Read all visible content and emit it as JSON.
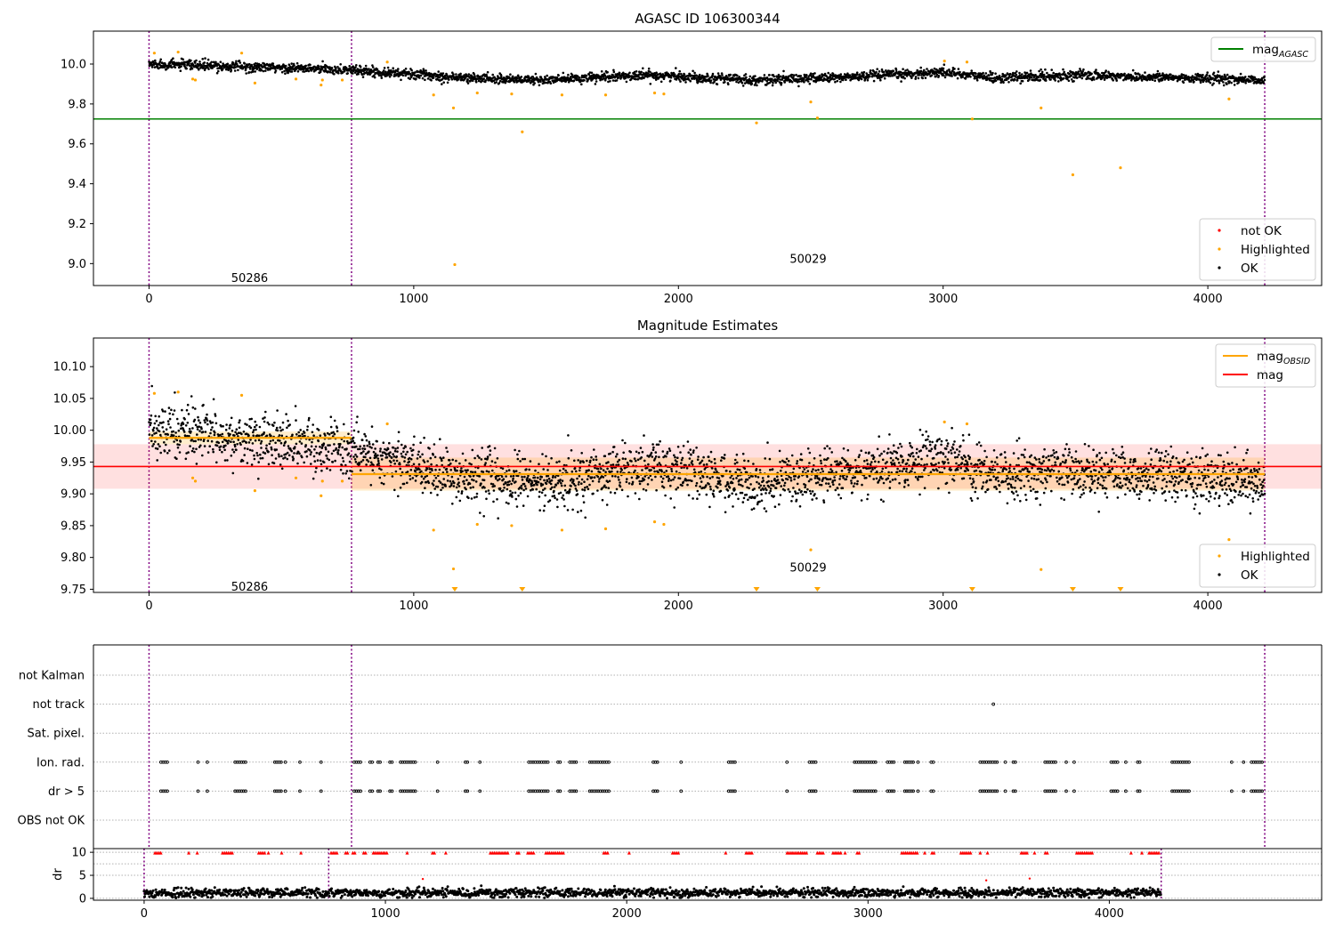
{
  "chart_data": [
    {
      "type": "scatter",
      "title": "AGASC ID 106300344",
      "xlim": [
        -210,
        4430
      ],
      "ylim": [
        8.89,
        10.165
      ],
      "xticks": [
        0,
        1000,
        2000,
        3000,
        4000
      ],
      "yticks": [
        9.0,
        9.2,
        9.4,
        9.6,
        9.8,
        10.0
      ],
      "ytick_labels": [
        "9.0",
        "9.2",
        "9.4",
        "9.6",
        "9.8",
        "10.0"
      ],
      "obsid_boundaries": [
        0,
        765,
        4215
      ],
      "obsid_labels": [
        {
          "text": "50286",
          "x": 380,
          "y": 8.93
        },
        {
          "text": "50029",
          "x": 2490,
          "y": 9.025
        }
      ],
      "hline": {
        "name": "mag_AGASC",
        "value": 9.725,
        "xmax": 4430,
        "color": "#008000"
      },
      "ok_trend": {
        "start": 10.0,
        "segments": [
          [
            765,
            9.97
          ],
          [
            1200,
            9.93
          ],
          [
            1500,
            9.92
          ],
          [
            1900,
            9.945
          ],
          [
            2300,
            9.92
          ],
          [
            2650,
            9.935
          ],
          [
            3000,
            9.96
          ],
          [
            3200,
            9.93
          ],
          [
            3500,
            9.945
          ],
          [
            4215,
            9.92
          ]
        ],
        "noise": 0.012
      },
      "highlighted": [
        {
          "x": 20,
          "y": 10.055
        },
        {
          "x": 110,
          "y": 10.06
        },
        {
          "x": 165,
          "y": 9.925
        },
        {
          "x": 175,
          "y": 9.92
        },
        {
          "x": 350,
          "y": 10.055
        },
        {
          "x": 400,
          "y": 9.905
        },
        {
          "x": 555,
          "y": 9.925
        },
        {
          "x": 650,
          "y": 9.895
        },
        {
          "x": 655,
          "y": 9.92
        },
        {
          "x": 730,
          "y": 9.92
        },
        {
          "x": 900,
          "y": 10.01
        },
        {
          "x": 1075,
          "y": 9.845
        },
        {
          "x": 1150,
          "y": 9.78
        },
        {
          "x": 1155,
          "y": 8.995
        },
        {
          "x": 1240,
          "y": 9.855
        },
        {
          "x": 1370,
          "y": 9.85
        },
        {
          "x": 1410,
          "y": 9.66
        },
        {
          "x": 1560,
          "y": 9.845
        },
        {
          "x": 1725,
          "y": 9.845
        },
        {
          "x": 1910,
          "y": 9.855
        },
        {
          "x": 1945,
          "y": 9.85
        },
        {
          "x": 2295,
          "y": 9.705
        },
        {
          "x": 2500,
          "y": 9.81
        },
        {
          "x": 2525,
          "y": 9.73
        },
        {
          "x": 3005,
          "y": 10.015
        },
        {
          "x": 3090,
          "y": 10.01
        },
        {
          "x": 3110,
          "y": 9.725
        },
        {
          "x": 3370,
          "y": 9.78
        },
        {
          "x": 3490,
          "y": 9.445
        },
        {
          "x": 3670,
          "y": 9.48
        },
        {
          "x": 4080,
          "y": 9.825
        }
      ],
      "not_ok": [],
      "legends": [
        {
          "position": "upper-right",
          "entries": [
            {
              "label_main": "mag",
              "label_sub": "AGASC",
              "marker": "line",
              "color": "#008000"
            }
          ]
        },
        {
          "position": "lower-right",
          "entries": [
            {
              "label_main": "not OK",
              "label_sub": "",
              "marker": "dot",
              "color": "#ff0000"
            },
            {
              "label_main": "Highlighted",
              "label_sub": "",
              "marker": "dot",
              "color": "#ffa500"
            },
            {
              "label_main": "OK",
              "label_sub": "",
              "marker": "dot",
              "color": "#000000"
            }
          ]
        }
      ]
    },
    {
      "type": "scatter",
      "title": "Magnitude Estimates",
      "xlim": [
        -210,
        4430
      ],
      "ylim": [
        9.745,
        10.145
      ],
      "xticks": [
        0,
        1000,
        2000,
        3000,
        4000
      ],
      "yticks": [
        9.75,
        9.8,
        9.85,
        9.9,
        9.95,
        10.0,
        10.05,
        10.1
      ],
      "ytick_labels": [
        "9.75",
        "9.80",
        "9.85",
        "9.90",
        "9.95",
        "10.00",
        "10.05",
        "10.10"
      ],
      "obsid_boundaries": [
        0,
        765,
        4215
      ],
      "obsid_labels": [
        {
          "text": "50286",
          "x": 380,
          "y": 9.755
        },
        {
          "text": "50029",
          "x": 2490,
          "y": 9.785
        }
      ],
      "mag_band": {
        "center": 9.943,
        "low": 9.908,
        "high": 9.978,
        "xmax": 4430,
        "color": "#ff0000"
      },
      "obsid_means": [
        {
          "x0": 0,
          "x1": 765,
          "value": 9.988,
          "low": 9.978,
          "high": 9.998
        },
        {
          "x0": 765,
          "x1": 4215,
          "value": 9.931,
          "low": 9.905,
          "high": 9.957
        }
      ],
      "ok_trend": {
        "start": 10.0,
        "segments": [
          [
            765,
            9.97
          ],
          [
            1200,
            9.925
          ],
          [
            1500,
            9.915
          ],
          [
            1900,
            9.945
          ],
          [
            2300,
            9.915
          ],
          [
            2650,
            9.935
          ],
          [
            3000,
            9.955
          ],
          [
            3200,
            9.93
          ],
          [
            3500,
            9.94
          ],
          [
            4215,
            9.915
          ]
        ],
        "noise": 0.02
      },
      "highlighted": [
        {
          "x": 20,
          "y": 10.058
        },
        {
          "x": 110,
          "y": 10.06
        },
        {
          "x": 165,
          "y": 9.925
        },
        {
          "x": 175,
          "y": 9.92
        },
        {
          "x": 350,
          "y": 10.055
        },
        {
          "x": 400,
          "y": 9.905
        },
        {
          "x": 555,
          "y": 9.925
        },
        {
          "x": 650,
          "y": 9.897
        },
        {
          "x": 655,
          "y": 9.92
        },
        {
          "x": 730,
          "y": 9.92
        },
        {
          "x": 900,
          "y": 10.01
        },
        {
          "x": 1075,
          "y": 9.843
        },
        {
          "x": 1150,
          "y": 9.782
        },
        {
          "x": 1240,
          "y": 9.852
        },
        {
          "x": 1370,
          "y": 9.85
        },
        {
          "x": 1560,
          "y": 9.843
        },
        {
          "x": 1725,
          "y": 9.845
        },
        {
          "x": 1910,
          "y": 9.856
        },
        {
          "x": 1945,
          "y": 9.852
        },
        {
          "x": 2500,
          "y": 9.812
        },
        {
          "x": 3005,
          "y": 10.013
        },
        {
          "x": 3090,
          "y": 10.01
        },
        {
          "x": 3370,
          "y": 9.781
        },
        {
          "x": 4080,
          "y": 9.828
        }
      ],
      "out_of_range": [
        1155,
        1410,
        2295,
        2525,
        3110,
        3490,
        3670
      ],
      "legends": [
        {
          "position": "upper-right",
          "entries": [
            {
              "label_main": "mag",
              "label_sub": "OBSID",
              "marker": "line",
              "color": "#ffa500"
            },
            {
              "label_main": "mag",
              "label_sub": "",
              "marker": "line",
              "color": "#ff0000"
            }
          ]
        },
        {
          "position": "lower-right",
          "entries": [
            {
              "label_main": "Highlighted",
              "label_sub": "",
              "marker": "dot",
              "color": "#ffa500"
            },
            {
              "label_main": "OK",
              "label_sub": "",
              "marker": "dot",
              "color": "#000000"
            }
          ]
        }
      ]
    },
    {
      "type": "scatter",
      "title": "",
      "xlim": [
        -210,
        4430
      ],
      "categories": [
        "not Kalman",
        "not track",
        "Sat. pixel.",
        "Ion. rad.",
        "dr > 5",
        "OBS not OK"
      ],
      "obsid_boundaries": [
        0,
        765,
        4215
      ],
      "flag_x_ranges": [
        [
          45,
          70
        ],
        [
          185,
          190
        ],
        [
          220,
          225
        ],
        [
          325,
          370
        ],
        [
          475,
          500
        ],
        [
          515,
          520
        ],
        [
          570,
          575
        ],
        [
          650,
          655
        ],
        [
          775,
          800
        ],
        [
          835,
          845
        ],
        [
          865,
          875
        ],
        [
          910,
          925
        ],
        [
          950,
          1010
        ],
        [
          1090,
          1095
        ],
        [
          1195,
          1205
        ],
        [
          1250,
          1255
        ],
        [
          1435,
          1510
        ],
        [
          1545,
          1560
        ],
        [
          1590,
          1620
        ],
        [
          1665,
          1740
        ],
        [
          1905,
          1925
        ],
        [
          2010,
          2015
        ],
        [
          2190,
          2215
        ],
        [
          2410,
          2415
        ],
        [
          2495,
          2525
        ],
        [
          2665,
          2745
        ],
        [
          2790,
          2815
        ],
        [
          2855,
          2890
        ],
        [
          2905,
          2910
        ],
        [
          2955,
          2965
        ],
        [
          3140,
          3210
        ],
        [
          3235,
          3240
        ],
        [
          3265,
          3275
        ],
        [
          3385,
          3430
        ],
        [
          3465,
          3470
        ],
        [
          3495,
          3500
        ],
        [
          3635,
          3665
        ],
        [
          3690,
          3695
        ],
        [
          3735,
          3750
        ],
        [
          3865,
          3935
        ],
        [
          4090,
          4095
        ],
        [
          4135,
          4140
        ],
        [
          4165,
          4210
        ]
      ],
      "flag_rows": [
        "Ion. rad.",
        "dr > 5"
      ],
      "extra_points": [
        {
          "category": "not track",
          "x": 3190
        }
      ]
    },
    {
      "type": "scatter",
      "title": "",
      "ylabel": "dr",
      "xlim": [
        -210,
        4880
      ],
      "ylim": [
        -0.4,
        10.8
      ],
      "xticks": [
        0,
        1000,
        2000,
        3000,
        4000
      ],
      "yticks": [
        0,
        5,
        10
      ],
      "obsid_boundaries": [
        0,
        765,
        4215
      ],
      "dr_base": 1.2,
      "dr_noise": 0.6,
      "dr_clip_marker": {
        "value": 9.9,
        "color": "#ff0000"
      },
      "dr_red_points": [
        {
          "x": 1155,
          "y": 4.2
        },
        {
          "x": 3490,
          "y": 3.9
        },
        {
          "x": 3670,
          "y": 4.3
        }
      ]
    }
  ]
}
